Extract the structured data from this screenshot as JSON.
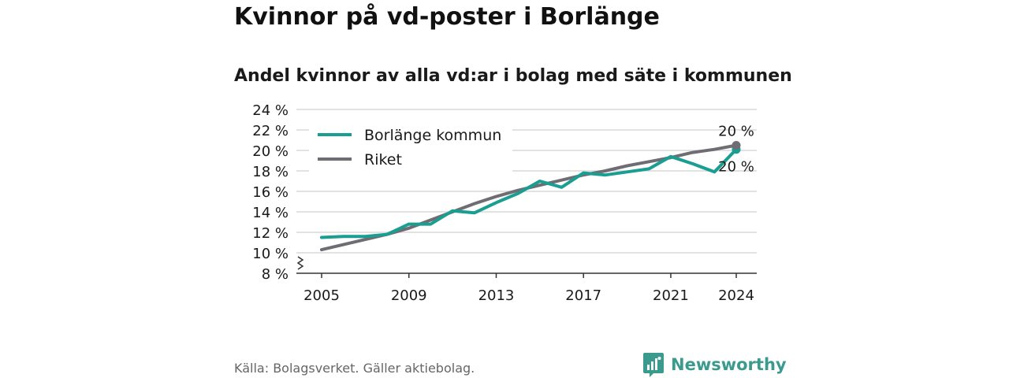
{
  "title": "Kvinnor på vd-poster i Borlänge",
  "subtitle": "Andel kvinnor av alla vd:ar i bolag med säte i kommunen",
  "source": "Källa: Bolagsverket. Gäller aktiebolag.",
  "brand": "Newsworthy",
  "colors": {
    "borlange": "#1a9e91",
    "riket": "#6f6d73",
    "grid": "#d9d9d9",
    "axis": "#333333",
    "brand": "#3a9a8e"
  },
  "chart_data": {
    "type": "line",
    "x": [
      2005,
      2006,
      2007,
      2008,
      2009,
      2010,
      2011,
      2012,
      2013,
      2014,
      2015,
      2016,
      2017,
      2018,
      2019,
      2020,
      2021,
      2022,
      2023,
      2024
    ],
    "x_ticks": [
      "2005",
      "2009",
      "2013",
      "2017",
      "2021",
      "2024"
    ],
    "y_ticks": [
      "8 %",
      "10 %",
      "12 %",
      "14 %",
      "16 %",
      "18 %",
      "20 %",
      "22 %",
      "24 %"
    ],
    "ylim": [
      8,
      24
    ],
    "y_axis_break": true,
    "grid": true,
    "legend_position": "top-left",
    "series": [
      {
        "name": "Borlänge kommun",
        "values": [
          11.5,
          11.6,
          11.6,
          11.8,
          12.8,
          12.8,
          14.1,
          13.9,
          14.9,
          15.8,
          17.0,
          16.4,
          17.8,
          17.6,
          17.9,
          18.2,
          19.4,
          18.7,
          17.9,
          20.1
        ],
        "end_label": "20 %"
      },
      {
        "name": "Riket",
        "values": [
          10.3,
          10.8,
          11.3,
          11.8,
          12.4,
          13.2,
          14.0,
          14.8,
          15.5,
          16.1,
          16.6,
          17.1,
          17.6,
          18.0,
          18.5,
          18.9,
          19.3,
          19.8,
          20.1,
          20.5
        ],
        "end_label": "20 %"
      }
    ]
  }
}
